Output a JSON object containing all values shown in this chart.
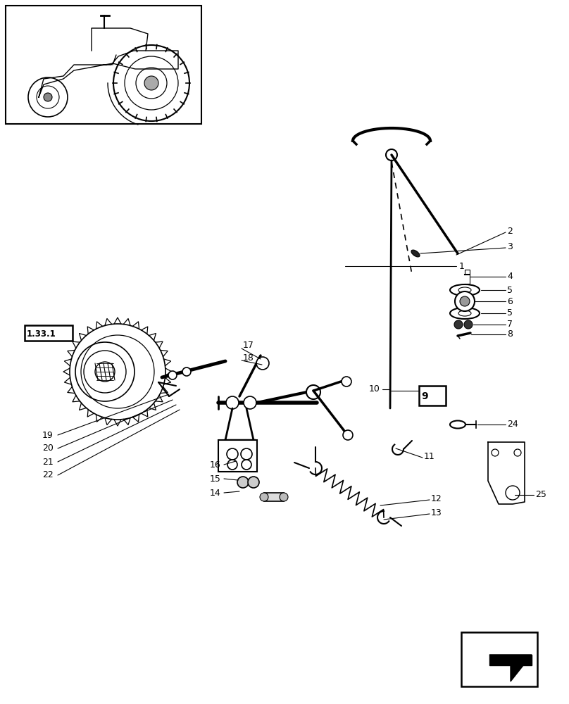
{
  "bg_color": "#ffffff",
  "lc": "#000000",
  "fs": 9,
  "fw": 8.08,
  "fh": 10.0,
  "dpi": 100
}
